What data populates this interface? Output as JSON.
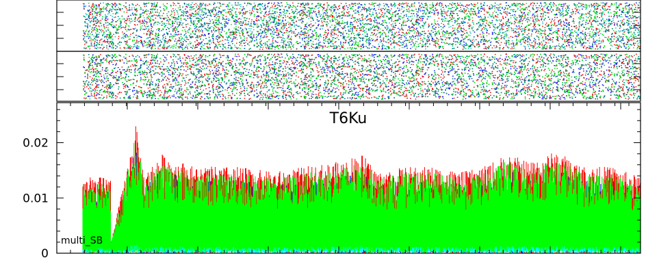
{
  "chart_data": [
    {
      "panel": "phase-top",
      "type": "scatter",
      "description_of_marks": "dense random scatter of dots",
      "colors": [
        "#00c0c0",
        "#00c000",
        "#0000ff",
        "#ff0000",
        "#00e000",
        "#008080"
      ]
    },
    {
      "panel": "phase-middle",
      "type": "scatter",
      "colors": [
        "#00c0c0",
        "#00c000",
        "#0000ff",
        "#ff0000",
        "#00e000",
        "#008080"
      ]
    },
    {
      "panel": "amplitude",
      "type": "line",
      "title": "T6Ku",
      "annotation": "multi_SB",
      "ylim": [
        0,
        0.027
      ],
      "yticks": [
        0,
        0.01,
        0.02
      ],
      "ytick_labels": [
        "0",
        "0.01",
        "0.02"
      ],
      "grid": false,
      "series": [
        {
          "color": "#0000ff",
          "level_scale": 0.8
        },
        {
          "color": "#ff0000",
          "level_scale": 0.95
        },
        {
          "color": "#00ffff",
          "level_scale": 0.35
        },
        {
          "color": "#00ff00",
          "level_scale": 0.88
        }
      ],
      "envelope_peaks": [
        {
          "x": 0.05,
          "y": 0.002
        },
        {
          "x": 0.075,
          "y": 0.014
        },
        {
          "x": 0.09,
          "y": 0.022
        },
        {
          "x": 0.095,
          "y": 0.0245
        },
        {
          "x": 0.11,
          "y": 0.015
        },
        {
          "x": 0.14,
          "y": 0.019
        },
        {
          "x": 0.2,
          "y": 0.0165
        },
        {
          "x": 0.28,
          "y": 0.0165
        },
        {
          "x": 0.34,
          "y": 0.0155
        },
        {
          "x": 0.4,
          "y": 0.0165
        },
        {
          "x": 0.46,
          "y": 0.0175
        },
        {
          "x": 0.5,
          "y": 0.019
        },
        {
          "x": 0.53,
          "y": 0.0155
        },
        {
          "x": 0.58,
          "y": 0.0165
        },
        {
          "x": 0.63,
          "y": 0.0165
        },
        {
          "x": 0.68,
          "y": 0.0155
        },
        {
          "x": 0.72,
          "y": 0.0165
        },
        {
          "x": 0.76,
          "y": 0.019
        },
        {
          "x": 0.8,
          "y": 0.0175
        },
        {
          "x": 0.85,
          "y": 0.0195
        },
        {
          "x": 0.9,
          "y": 0.0165
        },
        {
          "x": 0.95,
          "y": 0.0165
        },
        {
          "x": 1.0,
          "y": 0.0145
        }
      ]
    }
  ]
}
